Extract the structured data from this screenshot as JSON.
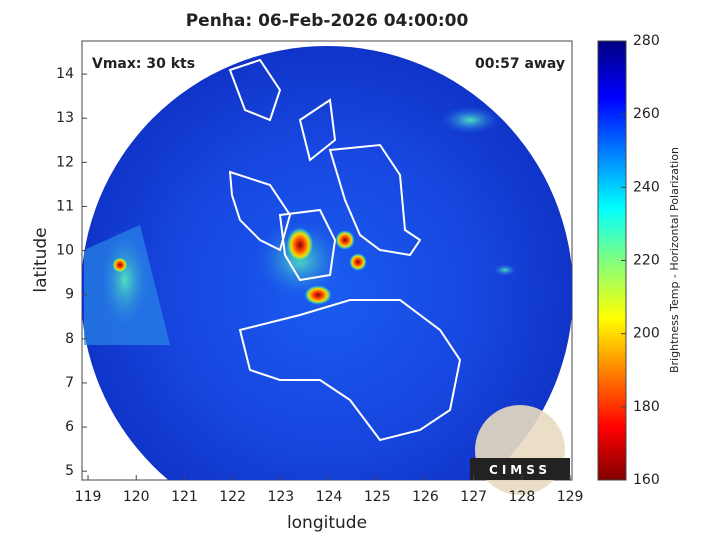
{
  "map": {
    "title": "Penha: 06-Feb-2026 04:00:00",
    "vmax_label": "Vmax: 30 kts",
    "time_label": "00:57 away",
    "xlabel": "longitude",
    "ylabel": "latitude",
    "xlim": [
      118.875,
      129.04
    ],
    "ylim": [
      4.8,
      14.75
    ],
    "xticks": [
      119,
      120,
      121,
      122,
      123,
      124,
      125,
      126,
      127,
      128,
      129
    ],
    "yticks": [
      5,
      6,
      7,
      8,
      9,
      10,
      11,
      12,
      13,
      14
    ],
    "colorbar": {
      "label": "Brightness Temp - Horizontal Polarization",
      "lim": [
        160,
        280
      ],
      "ticks": [
        160,
        180,
        200,
        220,
        240,
        260,
        280
      ]
    },
    "logo": "CIMSS"
  }
}
